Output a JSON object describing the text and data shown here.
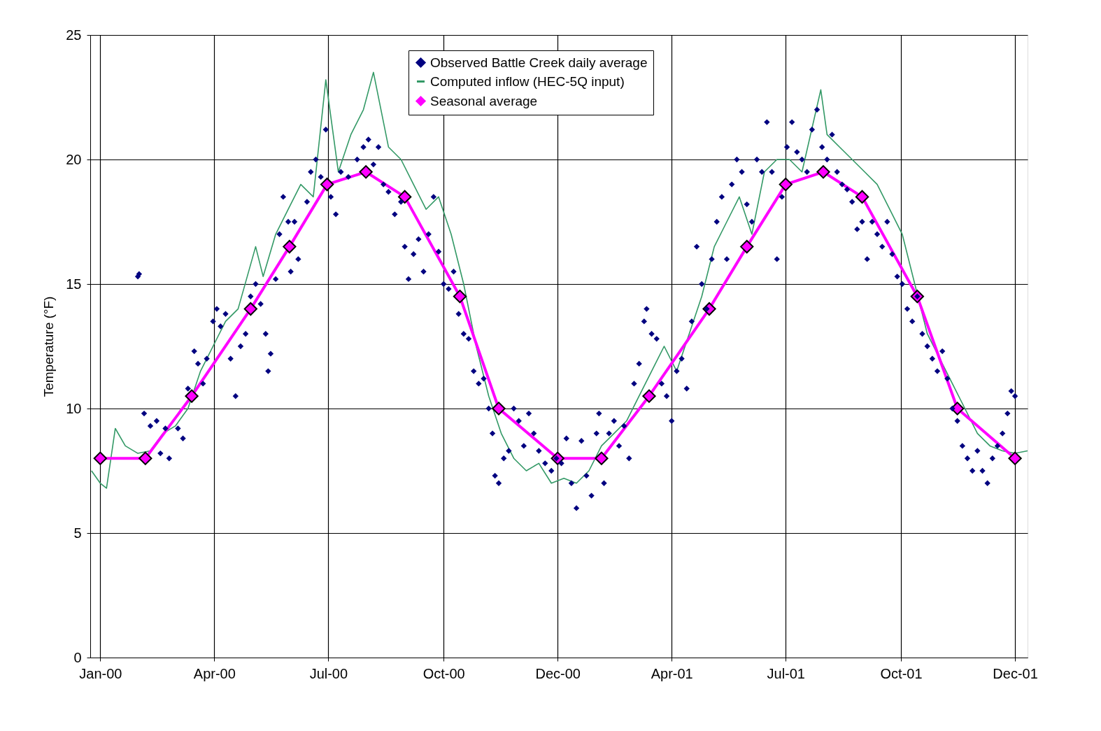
{
  "chart_data": {
    "type": "line",
    "ylabel": "Temperature (°F)",
    "xlim": [
      "1999-12-24",
      "2002-01-10"
    ],
    "ylim": [
      0,
      25
    ],
    "yticks": [
      0,
      5,
      10,
      15,
      20,
      25
    ],
    "xticks": [
      {
        "value": "2000-01-01",
        "label": "Jan-00"
      },
      {
        "value": "2000-04-01",
        "label": "Apr-00"
      },
      {
        "value": "2000-07-01",
        "label": "Jul-00"
      },
      {
        "value": "2000-10-01",
        "label": "Oct-00"
      },
      {
        "value": "2000-12-31",
        "label": "Dec-00"
      },
      {
        "value": "2001-04-01",
        "label": "Apr-01"
      },
      {
        "value": "2001-07-01",
        "label": "Jul-01"
      },
      {
        "value": "2001-10-01",
        "label": "Oct-01"
      },
      {
        "value": "2001-12-31",
        "label": "Dec-01"
      }
    ],
    "grid": true,
    "legend": "top",
    "line_style": "solid",
    "series": [
      {
        "name": "Observed Battle Creek daily average",
        "type": "scatter",
        "marker": "diamond",
        "color": "#000080",
        "x": [
          "2000-01-31",
          "2000-02-01",
          "2000-02-05",
          "2000-02-10",
          "2000-02-15",
          "2000-02-18",
          "2000-02-22",
          "2000-02-25",
          "2000-03-03",
          "2000-03-07",
          "2000-03-11",
          "2000-03-16",
          "2000-03-19",
          "2000-03-23",
          "2000-03-26",
          "2000-03-31",
          "2000-04-03",
          "2000-04-06",
          "2000-04-10",
          "2000-04-14",
          "2000-04-18",
          "2000-04-22",
          "2000-04-26",
          "2000-04-30",
          "2000-05-04",
          "2000-05-08",
          "2000-05-12",
          "2000-05-14",
          "2000-05-16",
          "2000-05-20",
          "2000-05-23",
          "2000-05-26",
          "2000-05-30",
          "2000-06-01",
          "2000-06-04",
          "2000-06-07",
          "2000-06-14",
          "2000-06-17",
          "2000-06-21",
          "2000-06-25",
          "2000-06-29",
          "2000-07-03",
          "2000-07-07",
          "2000-07-11",
          "2000-07-17",
          "2000-07-24",
          "2000-07-29",
          "2000-08-02",
          "2000-08-06",
          "2000-08-10",
          "2000-08-14",
          "2000-08-18",
          "2000-08-23",
          "2000-08-28",
          "2000-08-31",
          "2000-09-03",
          "2000-09-07",
          "2000-09-11",
          "2000-09-15",
          "2000-09-19",
          "2000-09-23",
          "2000-09-27",
          "2000-10-01",
          "2000-10-05",
          "2000-10-09",
          "2000-10-13",
          "2000-10-17",
          "2000-10-21",
          "2000-10-25",
          "2000-10-29",
          "2000-11-02",
          "2000-11-06",
          "2000-11-09",
          "2000-11-11",
          "2000-11-14",
          "2000-11-18",
          "2000-11-22",
          "2000-11-26",
          "2000-11-30",
          "2000-12-04",
          "2000-12-08",
          "2000-12-12",
          "2000-12-16",
          "2000-12-21",
          "2000-12-26",
          "2000-12-30",
          "2001-01-03",
          "2001-01-07",
          "2001-01-11",
          "2001-01-15",
          "2001-01-19",
          "2001-01-23",
          "2001-01-27",
          "2001-01-31",
          "2001-02-02",
          "2001-02-06",
          "2001-02-10",
          "2001-02-14",
          "2001-02-18",
          "2001-02-22",
          "2001-02-26",
          "2001-03-02",
          "2001-03-06",
          "2001-03-10",
          "2001-03-12",
          "2001-03-16",
          "2001-03-20",
          "2001-03-24",
          "2001-03-28",
          "2001-04-01",
          "2001-04-05",
          "2001-04-09",
          "2001-04-13",
          "2001-04-17",
          "2001-04-21",
          "2001-04-25",
          "2001-04-29",
          "2001-05-03",
          "2001-05-07",
          "2001-05-11",
          "2001-05-15",
          "2001-05-19",
          "2001-05-23",
          "2001-05-27",
          "2001-05-31",
          "2001-06-04",
          "2001-06-08",
          "2001-06-12",
          "2001-06-16",
          "2001-06-20",
          "2001-06-24",
          "2001-06-28",
          "2001-07-02",
          "2001-07-06",
          "2001-07-10",
          "2001-07-14",
          "2001-07-18",
          "2001-07-22",
          "2001-07-26",
          "2001-07-30",
          "2001-08-03",
          "2001-08-07",
          "2001-08-11",
          "2001-08-15",
          "2001-08-19",
          "2001-08-23",
          "2001-08-27",
          "2001-08-31",
          "2001-09-04",
          "2001-09-08",
          "2001-09-12",
          "2001-09-16",
          "2001-09-20",
          "2001-09-24",
          "2001-09-28",
          "2001-10-02",
          "2001-10-06",
          "2001-10-10",
          "2001-10-14",
          "2001-10-18",
          "2001-10-22",
          "2001-10-26",
          "2001-10-30",
          "2001-11-03",
          "2001-11-07",
          "2001-11-11",
          "2001-11-15",
          "2001-11-19",
          "2001-11-23",
          "2001-11-27",
          "2001-12-01",
          "2001-12-05",
          "2001-12-09",
          "2001-12-13",
          "2001-12-17",
          "2001-12-21",
          "2001-12-25",
          "2001-12-28",
          "2001-12-31"
        ],
        "values": [
          15.3,
          15.4,
          9.8,
          9.3,
          9.5,
          8.2,
          9.2,
          8.0,
          9.2,
          8.8,
          10.8,
          12.3,
          11.8,
          11.0,
          12.0,
          13.5,
          14.0,
          13.3,
          13.8,
          12.0,
          10.5,
          12.5,
          13.0,
          14.5,
          15.0,
          14.2,
          13.0,
          11.5,
          12.2,
          15.2,
          17.0,
          18.5,
          17.5,
          15.5,
          17.5,
          16.0,
          18.3,
          19.5,
          20.0,
          19.3,
          21.2,
          18.5,
          17.8,
          19.5,
          19.3,
          20.0,
          20.5,
          20.8,
          19.8,
          20.5,
          19.0,
          18.7,
          17.8,
          18.3,
          16.5,
          15.2,
          16.2,
          16.8,
          15.5,
          17.0,
          18.5,
          16.3,
          15.0,
          14.8,
          15.5,
          13.8,
          13.0,
          12.8,
          11.5,
          11.0,
          11.2,
          10.0,
          9.0,
          7.3,
          7.0,
          8.0,
          8.3,
          10.0,
          9.5,
          8.5,
          9.8,
          9.0,
          8.3,
          7.8,
          7.5,
          8.0,
          7.8,
          8.8,
          7.0,
          6.0,
          8.7,
          7.3,
          6.5,
          9.0,
          9.8,
          7.0,
          9.0,
          9.5,
          8.5,
          9.3,
          8.0,
          11.0,
          11.8,
          13.5,
          14.0,
          13.0,
          12.8,
          11.0,
          10.5,
          9.5,
          11.5,
          12.0,
          10.8,
          13.5,
          16.5,
          15.0,
          14.0,
          16.0,
          17.5,
          18.5,
          16.0,
          19.0,
          20.0,
          19.5,
          18.2,
          17.5,
          20.0,
          19.5,
          21.5,
          19.5,
          16.0,
          18.5,
          20.5,
          21.5,
          20.3,
          20.0,
          19.5,
          21.2,
          22.0,
          20.5,
          20.0,
          21.0,
          19.5,
          19.0,
          18.8,
          18.3,
          17.2,
          17.5,
          16.0,
          17.5,
          17.0,
          16.5,
          17.5,
          16.2,
          15.3,
          15.0,
          14.0,
          13.5,
          14.5,
          13.0,
          12.5,
          12.0,
          11.5,
          12.3,
          11.2,
          10.0,
          9.5,
          8.5,
          8.0,
          7.5,
          8.3,
          7.5,
          7.0,
          8.0,
          8.5,
          9.0,
          9.8,
          10.7,
          10.5
        ]
      },
      {
        "name": "Computed inflow (HEC-5Q input)",
        "marker": "none",
        "color": "#339966",
        "x": [
          "1999-12-25",
          "2000-01-01",
          "2000-01-06",
          "2000-01-13",
          "2000-01-21",
          "2000-01-31",
          "2000-02-10",
          "2000-02-20",
          "2000-03-01",
          "2000-03-11",
          "2000-03-21",
          "2000-03-31",
          "2000-04-10",
          "2000-04-20",
          "2000-05-04",
          "2000-05-10",
          "2000-05-20",
          "2000-05-30",
          "2000-06-09",
          "2000-06-19",
          "2000-06-29",
          "2000-07-09",
          "2000-07-19",
          "2000-07-29",
          "2000-08-06",
          "2000-08-18",
          "2000-08-28",
          "2000-09-07",
          "2000-09-17",
          "2000-09-27",
          "2000-10-07",
          "2000-10-17",
          "2000-10-27",
          "2000-11-06",
          "2000-11-16",
          "2000-11-26",
          "2000-12-06",
          "2000-12-16",
          "2000-12-26",
          "2001-01-05",
          "2001-01-15",
          "2001-01-25",
          "2001-02-04",
          "2001-02-14",
          "2001-02-24",
          "2001-03-06",
          "2001-03-16",
          "2001-03-26",
          "2001-04-05",
          "2001-04-15",
          "2001-04-25",
          "2001-05-05",
          "2001-05-15",
          "2001-05-25",
          "2001-06-04",
          "2001-06-14",
          "2001-06-24",
          "2001-07-04",
          "2001-07-14",
          "2001-07-29",
          "2001-08-03",
          "2001-08-13",
          "2001-08-23",
          "2001-09-02",
          "2001-09-12",
          "2001-09-22",
          "2001-10-02",
          "2001-10-12",
          "2001-10-22",
          "2001-11-01",
          "2001-11-11",
          "2001-11-21",
          "2001-12-01",
          "2001-12-11",
          "2001-12-21",
          "2001-12-31",
          "2002-01-10"
        ],
        "values": [
          7.5,
          7.0,
          6.8,
          9.2,
          8.5,
          8.2,
          8.3,
          9.0,
          9.3,
          10.0,
          11.5,
          12.5,
          13.5,
          14.0,
          16.5,
          15.3,
          17.0,
          18.0,
          19.0,
          18.5,
          23.2,
          19.5,
          21.0,
          22.0,
          23.5,
          20.5,
          20.0,
          19.0,
          18.0,
          18.5,
          17.0,
          15.0,
          12.5,
          10.5,
          9.0,
          8.0,
          7.5,
          7.8,
          7.0,
          7.2,
          7.0,
          7.5,
          8.5,
          9.0,
          9.5,
          10.5,
          11.5,
          12.5,
          11.5,
          13.0,
          14.5,
          16.5,
          17.5,
          18.5,
          17.0,
          19.5,
          20.0,
          20.0,
          19.5,
          22.8,
          21.0,
          20.5,
          20.0,
          19.5,
          19.0,
          18.0,
          17.0,
          15.0,
          13.0,
          12.0,
          11.0,
          10.0,
          9.0,
          8.5,
          8.3,
          8.2,
          8.3
        ]
      },
      {
        "name": "Seasonal average",
        "marker": "diamond",
        "color": "#ff00ff",
        "x": [
          "2000-01-01",
          "2000-02-06",
          "2000-03-14",
          "2000-04-30",
          "2000-05-31",
          "2000-06-30",
          "2000-07-31",
          "2000-08-31",
          "2000-10-14",
          "2000-11-14",
          "2000-12-31",
          "2001-02-04",
          "2001-03-14",
          "2001-05-01",
          "2001-05-31",
          "2001-07-01",
          "2001-07-31",
          "2001-08-31",
          "2001-10-14",
          "2001-11-15",
          "2001-12-31"
        ],
        "values": [
          8,
          8,
          10.5,
          14,
          16.5,
          19,
          19.5,
          18.5,
          14.5,
          10,
          8,
          8,
          10.5,
          14,
          16.5,
          19,
          19.5,
          18.5,
          14.5,
          10,
          8
        ]
      }
    ]
  }
}
